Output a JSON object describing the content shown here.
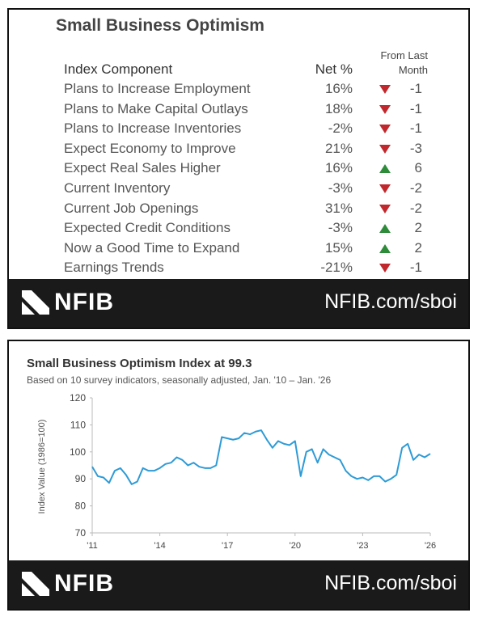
{
  "table": {
    "title": "Small Business Optimism",
    "columns": [
      "Index Component",
      "Net %",
      "From Last Month"
    ],
    "rows": [
      [
        "Plans to Increase Employment",
        "16%",
        -1
      ],
      [
        "Plans to Make Capital Outlays",
        "18%",
        -1
      ],
      [
        "Plans to Increase Inventories",
        "-2%",
        -1
      ],
      [
        "Expect Economy to Improve",
        "21%",
        -3
      ],
      [
        "Expect Real Sales Higher",
        "16%",
        6
      ],
      [
        "Current Inventory",
        "-3%",
        -2
      ],
      [
        "Current Job Openings",
        "31%",
        -2
      ],
      [
        "Expected Credit Conditions",
        "-3%",
        2
      ],
      [
        "Now a Good Time to Expand",
        "15%",
        2
      ],
      [
        "Earnings Trends",
        "-21%",
        -1
      ]
    ]
  },
  "footer": {
    "logo": "NFIB",
    "url": "NFIB.com/sboi"
  },
  "chart_data": {
    "type": "line",
    "title": "Small Business Optimism Index at 99.3",
    "subtitle": "Based on 10 survey indicators, seasonally adjusted,  Jan. '10 – Jan. '26",
    "y_label": "Index Value (1986=100)",
    "x": [
      2011,
      2011.25,
      2011.5,
      2011.75,
      2012,
      2012.25,
      2012.5,
      2012.75,
      2013,
      2013.25,
      2013.5,
      2013.75,
      2014,
      2014.25,
      2014.5,
      2014.75,
      2015,
      2015.25,
      2015.5,
      2015.75,
      2016,
      2016.25,
      2016.5,
      2016.75,
      2017,
      2017.25,
      2017.5,
      2017.75,
      2018,
      2018.25,
      2018.5,
      2018.75,
      2019,
      2019.25,
      2019.5,
      2019.75,
      2020,
      2020.25,
      2020.5,
      2020.75,
      2021,
      2021.25,
      2021.5,
      2021.75,
      2022,
      2022.25,
      2022.5,
      2022.75,
      2023,
      2023.25,
      2023.5,
      2023.75,
      2024,
      2024.25,
      2024.5,
      2024.75,
      2025,
      2025.25,
      2025.5,
      2025.75,
      2026
    ],
    "series": [
      {
        "name": "Index",
        "color": "#2e9bd6",
        "values": [
          94.5,
          91,
          90.5,
          88.5,
          93,
          94,
          91.5,
          88,
          89,
          94,
          93,
          93,
          94,
          95.5,
          96,
          98,
          97,
          95,
          96,
          94.5,
          94,
          94,
          95,
          105.5,
          105,
          104.5,
          105,
          107,
          106.5,
          107.5,
          108,
          104.5,
          101.5,
          104,
          103,
          102.5,
          104,
          91,
          100,
          101,
          96,
          101,
          99,
          98,
          97,
          93,
          91,
          90,
          90.5,
          89.5,
          91,
          91,
          89,
          90,
          91.5,
          101.5,
          103,
          97,
          99,
          98,
          99.3
        ]
      }
    ],
    "xlim": [
      2011,
      2026
    ],
    "xticks": [
      {
        "value": 2011,
        "label": "'11"
      },
      {
        "value": 2014,
        "label": "'14"
      },
      {
        "value": 2017,
        "label": "'17"
      },
      {
        "value": 2020,
        "label": "'20"
      },
      {
        "value": 2023,
        "label": "'23"
      },
      {
        "value": 2026,
        "label": "'26"
      }
    ],
    "ylim": [
      70,
      120
    ],
    "yticks": [
      70,
      80,
      90,
      100,
      110,
      120
    ]
  }
}
